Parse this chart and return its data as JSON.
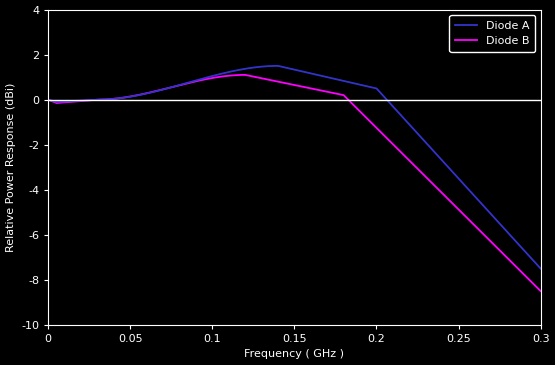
{
  "background_color": "#000000",
  "plot_bg_color": "#000000",
  "text_color": "#ffffff",
  "xlabel": "Frequency ( GHz )",
  "ylabel": "Relative Power Response (dBi)",
  "xlim": [
    0,
    0.3
  ],
  "ylim": [
    -10,
    4
  ],
  "xticks": [
    0,
    0.05,
    0.1,
    0.15,
    0.2,
    0.25,
    0.3
  ],
  "yticks": [
    -10,
    -8,
    -6,
    -4,
    -2,
    0,
    2,
    4
  ],
  "legend_labels": [
    "Diode A",
    "Diode B"
  ],
  "diode_a_color": "#3333cc",
  "diode_b_color": "#ff00ff",
  "hline_y": 0,
  "hline_color": "#ffffff",
  "hline_lw": 1.0,
  "line_lw": 1.3,
  "font_size": 8,
  "legend_font_size": 8,
  "figsize": [
    5.55,
    3.65
  ],
  "dpi": 100
}
